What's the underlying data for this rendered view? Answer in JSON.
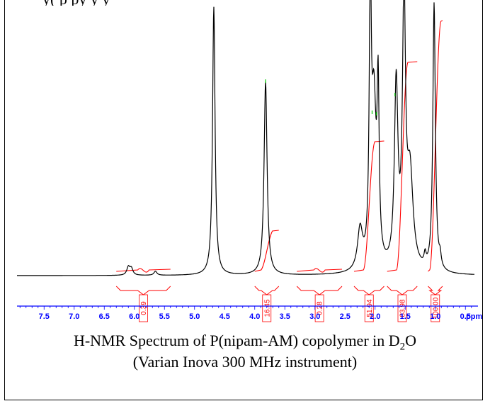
{
  "top_text_fragment": "y(     p    py y         y",
  "caption": {
    "line1_before": "H-NMR Spectrum of P(nipam-AM) copolymer in D",
    "line1_sub": "2",
    "line1_after": "O",
    "line2": "(Varian Inova 300 MHz instrument)"
  },
  "colors": {
    "spectrum": "#000000",
    "integral": "#ff0000",
    "axis": "#0000ff",
    "peak_marker": "#00cc00"
  },
  "chart_data": {
    "type": "line",
    "title": "H-NMR Spectrum of P(nipam-AM) copolymer in D2O",
    "xlabel": "ppm",
    "x_reversed": true,
    "xlim": [
      7.95,
      0.35
    ],
    "x_ticks": [
      "7.5",
      "7.0",
      "6.5",
      "6.0",
      "5.5",
      "5.0",
      "4.5",
      "4.0",
      "3.5",
      "3.0",
      "2.5",
      "2.0",
      "1.5",
      "1.0",
      "0.5"
    ],
    "x_tick_values": [
      7.5,
      7.0,
      6.5,
      6.0,
      5.5,
      5.0,
      4.5,
      4.0,
      3.5,
      3.0,
      2.5,
      2.0,
      1.5,
      1.0,
      0.5
    ],
    "peaks": [
      {
        "ppm": 6.1,
        "height": 0.03,
        "width": 0.03
      },
      {
        "ppm": 6.05,
        "height": 0.025,
        "width": 0.03
      },
      {
        "ppm": 5.65,
        "height": 0.015,
        "width": 0.03
      },
      {
        "ppm": 4.68,
        "height": 1.0,
        "width": 0.025
      },
      {
        "ppm": 3.82,
        "height": 0.72,
        "width": 0.03
      },
      {
        "ppm": 2.25,
        "height": 0.15,
        "width": 0.05
      },
      {
        "ppm": 2.08,
        "height": 1.0,
        "width": 0.02
      },
      {
        "ppm": 2.02,
        "height": 0.6,
        "width": 0.045
      },
      {
        "ppm": 1.95,
        "height": 0.6,
        "width": 0.02
      },
      {
        "ppm": 1.65,
        "height": 0.68,
        "width": 0.035
      },
      {
        "ppm": 1.52,
        "height": 1.0,
        "width": 0.03
      },
      {
        "ppm": 1.42,
        "height": 0.35,
        "width": 0.06
      },
      {
        "ppm": 1.17,
        "height": 0.04,
        "width": 0.02
      },
      {
        "ppm": 1.02,
        "height": 1.0,
        "width": 0.025
      },
      {
        "ppm": 0.92,
        "height": 0.04,
        "width": 0.02
      }
    ],
    "integrals": [
      {
        "label": "0.39",
        "from": 6.3,
        "to": 5.4,
        "value": 0.39
      },
      {
        "label": "16.45",
        "from": 4.0,
        "to": 3.6,
        "value": 16.45
      },
      {
        "label": "0.28",
        "from": 3.3,
        "to": 2.55,
        "value": 0.28
      },
      {
        "label": "51.94",
        "from": 2.35,
        "to": 1.85,
        "value": 51.94
      },
      {
        "label": "83.98",
        "from": 1.8,
        "to": 1.3,
        "value": 83.98
      },
      {
        "label": "100.00",
        "from": 1.12,
        "to": 0.88,
        "value": 100.0
      }
    ]
  }
}
